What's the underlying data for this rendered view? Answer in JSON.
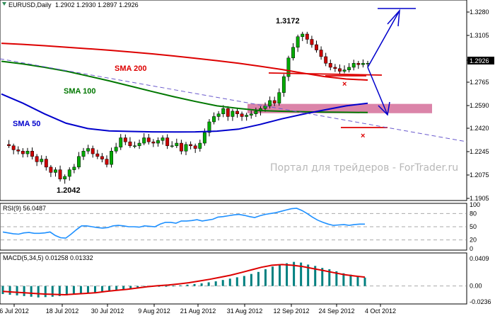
{
  "header": {
    "symbol": "EURUSD,Daily",
    "ohlc": "1.2902 1.2930 1.2897 1.2926",
    "rsi": "RSI(9) 56.0487",
    "macd": "MACD(5,34,5) 0.01258 0.01332"
  },
  "watermark": "Портал для трейдеров - ForTrader.ru",
  "colors": {
    "bull": "#00aa00",
    "bear": "#cc0000",
    "sma200": "#dd0000",
    "sma100": "#007700",
    "sma50": "#0000cc",
    "rsi": "#1e90ff",
    "macd_hist": "#008080",
    "macd_signal": "#dd0000",
    "zone": "#d56f9a",
    "arrow": "#0000cc"
  },
  "chart_data": [
    {
      "type": "candlestick",
      "ylim": [
        1.1905,
        1.3305
      ],
      "y_ticks": [
        "1.3280",
        "1.3105",
        "1.2926",
        "1.2765",
        "1.2590",
        "1.2420",
        "1.2245",
        "1.2075",
        "1.1905"
      ],
      "current_price": "1.2926",
      "x_ticks": [
        "6 Jul 2012",
        "18 Jul 2012",
        "30 Jul 2012",
        "9 Aug 2012",
        "21 Aug 2012",
        "31 Aug 2012",
        "12 Sep 2012",
        "24 Sep 2012",
        "4 Oct 2012"
      ],
      "annotations": {
        "high": "1.3172",
        "low": "1.2042",
        "cross": "×"
      },
      "series": [
        {
          "name": "SMA 200",
          "label": "SMA 200"
        },
        {
          "name": "SMA 100",
          "label": "SMA 100"
        },
        {
          "name": "SMA 50",
          "label": "SMA 50"
        }
      ],
      "price_path": [
        1.231,
        1.23,
        1.227,
        1.226,
        1.224,
        1.226,
        1.222,
        1.218,
        1.22,
        1.214,
        1.21,
        1.212,
        1.205,
        1.207,
        1.212,
        1.214,
        1.222,
        1.226,
        1.228,
        1.224,
        1.222,
        1.22,
        1.216,
        1.226,
        1.229,
        1.236,
        1.233,
        1.23,
        1.23,
        1.232,
        1.236,
        1.233,
        1.232,
        1.234,
        1.236,
        1.23,
        1.23,
        1.232,
        1.226,
        1.231,
        1.23,
        1.228,
        1.232,
        1.24,
        1.248,
        1.252,
        1.254,
        1.258,
        1.252,
        1.256,
        1.254,
        1.252,
        1.253,
        1.254,
        1.256,
        1.258,
        1.26,
        1.264,
        1.262,
        1.27,
        1.282,
        1.296,
        1.304,
        1.312,
        1.314,
        1.31,
        1.306,
        1.302,
        1.297,
        1.292,
        1.289,
        1.288,
        1.286,
        1.287,
        1.289,
        1.292,
        1.291,
        1.292,
        1.292
      ],
      "sma200": [
        1.307,
        1.3062,
        1.3052,
        1.3041,
        1.303,
        1.3018,
        1.3005,
        1.2991,
        1.2975,
        1.2958,
        1.294,
        1.292,
        1.2898,
        1.2874,
        1.2846,
        1.282,
        1.2802,
        1.2794
      ],
      "sma100": [
        1.2935,
        1.2915,
        1.289,
        1.2861,
        1.2825,
        1.2788,
        1.2748,
        1.2708,
        1.2669,
        1.2633,
        1.26,
        1.2581,
        1.2565,
        1.256,
        1.2556,
        1.2553,
        1.2552,
        1.255
      ],
      "sma50": [
        1.2689,
        1.262,
        1.254,
        1.247,
        1.243,
        1.2412,
        1.2408,
        1.2405,
        1.2404,
        1.2405,
        1.241,
        1.2425,
        1.246,
        1.2502,
        1.2538,
        1.257,
        1.26,
        1.262
      ],
      "zone": [
        1.2545,
        1.2615
      ]
    },
    {
      "type": "line",
      "name": "RSI(9)",
      "ylim": [
        0,
        100
      ],
      "y_ticks": [
        "100",
        "80",
        "50",
        "20",
        "0"
      ],
      "values": [
        38,
        36,
        34,
        33,
        36,
        37,
        35,
        35,
        36,
        38,
        30,
        25,
        24,
        33,
        43,
        52,
        52,
        50,
        48,
        47,
        48,
        52,
        53,
        52,
        50,
        50,
        49,
        52,
        51,
        50,
        56,
        60,
        60,
        58,
        63,
        63,
        64,
        66,
        63,
        65,
        67,
        72,
        73,
        75,
        77,
        78,
        76,
        73,
        71,
        75,
        78,
        80,
        82,
        85,
        88,
        91,
        92,
        87,
        80,
        72,
        65,
        60,
        56,
        53,
        54,
        55,
        53,
        55,
        56,
        56
      ]
    },
    {
      "type": "bar",
      "name": "MACD(5,34,5)",
      "ylim": [
        -0.0236,
        0.0409
      ],
      "y_ticks": [
        "0.0409",
        "0.00",
        "-0.0236"
      ],
      "histogram": [
        -0.012,
        -0.013,
        -0.014,
        -0.015,
        -0.016,
        -0.017,
        -0.0165,
        -0.016,
        -0.015,
        -0.014,
        -0.013,
        -0.012,
        -0.011,
        -0.01,
        -0.009,
        -0.008,
        -0.007,
        -0.006,
        -0.004,
        -0.003,
        -0.002,
        -0.001,
        -0.0005,
        0.0,
        0.0005,
        0.001,
        0.002,
        0.003,
        0.004,
        0.0055,
        0.007,
        0.009,
        0.011,
        0.013,
        0.015,
        0.018,
        0.021,
        0.025,
        0.029,
        0.032,
        0.034,
        0.036,
        0.035,
        0.032,
        0.03,
        0.027,
        0.025,
        0.022,
        0.019,
        0.017,
        0.015,
        0.0126
      ],
      "signal": [
        -0.008,
        -0.009,
        -0.01,
        -0.011,
        -0.012,
        -0.0125,
        -0.013,
        -0.012,
        -0.011,
        -0.01,
        -0.008,
        -0.0065,
        -0.005,
        -0.003,
        -0.001,
        0.0005,
        0.0015,
        0.003,
        0.005,
        0.0075,
        0.01,
        0.013,
        0.016,
        0.02,
        0.024,
        0.028,
        0.031,
        0.032,
        0.031,
        0.029,
        0.026,
        0.023,
        0.02,
        0.017,
        0.015,
        0.0133
      ]
    }
  ]
}
